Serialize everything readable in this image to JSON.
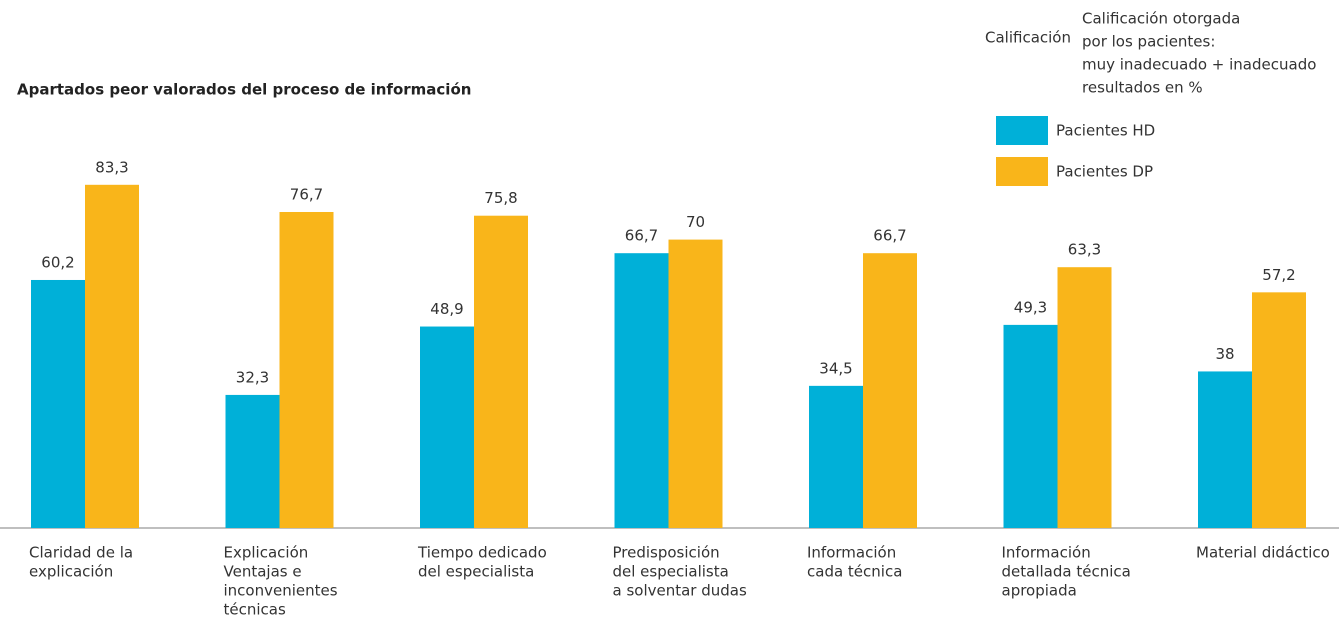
{
  "chart_data": {
    "type": "bar",
    "title": "Apartados peor valorados del proceso de información",
    "note": [
      "Calificación otorgada",
      "por los pacientes:",
      "muy inadecuado + inadecuado",
      "resultados en %"
    ],
    "clipped_note": "Calificación",
    "categories": [
      [
        "Claridad de la",
        "explicación"
      ],
      [
        "Explicación",
        "Ventajas e",
        "inconvenientes",
        "técnicas"
      ],
      [
        "Tiempo dedicado",
        "del especialista"
      ],
      [
        "Predisposición",
        "del especialista",
        "a solventar dudas"
      ],
      [
        "Información",
        "cada técnica"
      ],
      [
        "Información",
        "detallada técnica",
        "apropiada"
      ],
      [
        "Material didáctico"
      ]
    ],
    "series": [
      {
        "name": "Pacientes HD",
        "color": "#00b0d8",
        "values": [
          60.2,
          32.3,
          48.9,
          66.7,
          34.5,
          49.3,
          38
        ],
        "value_labels": [
          "60,2",
          "32,3",
          "48,9",
          "66,7",
          "34,5",
          "49,3",
          "38"
        ]
      },
      {
        "name": "Pacientes DP",
        "color": "#f9b51a",
        "values": [
          83.3,
          76.7,
          75.8,
          70,
          66.7,
          63.3,
          57.2
        ],
        "value_labels": [
          "83,3",
          "76,7",
          "75,8",
          "70",
          "66,7",
          "63,3",
          "57,2"
        ]
      }
    ],
    "ylim": [
      0,
      100
    ]
  }
}
